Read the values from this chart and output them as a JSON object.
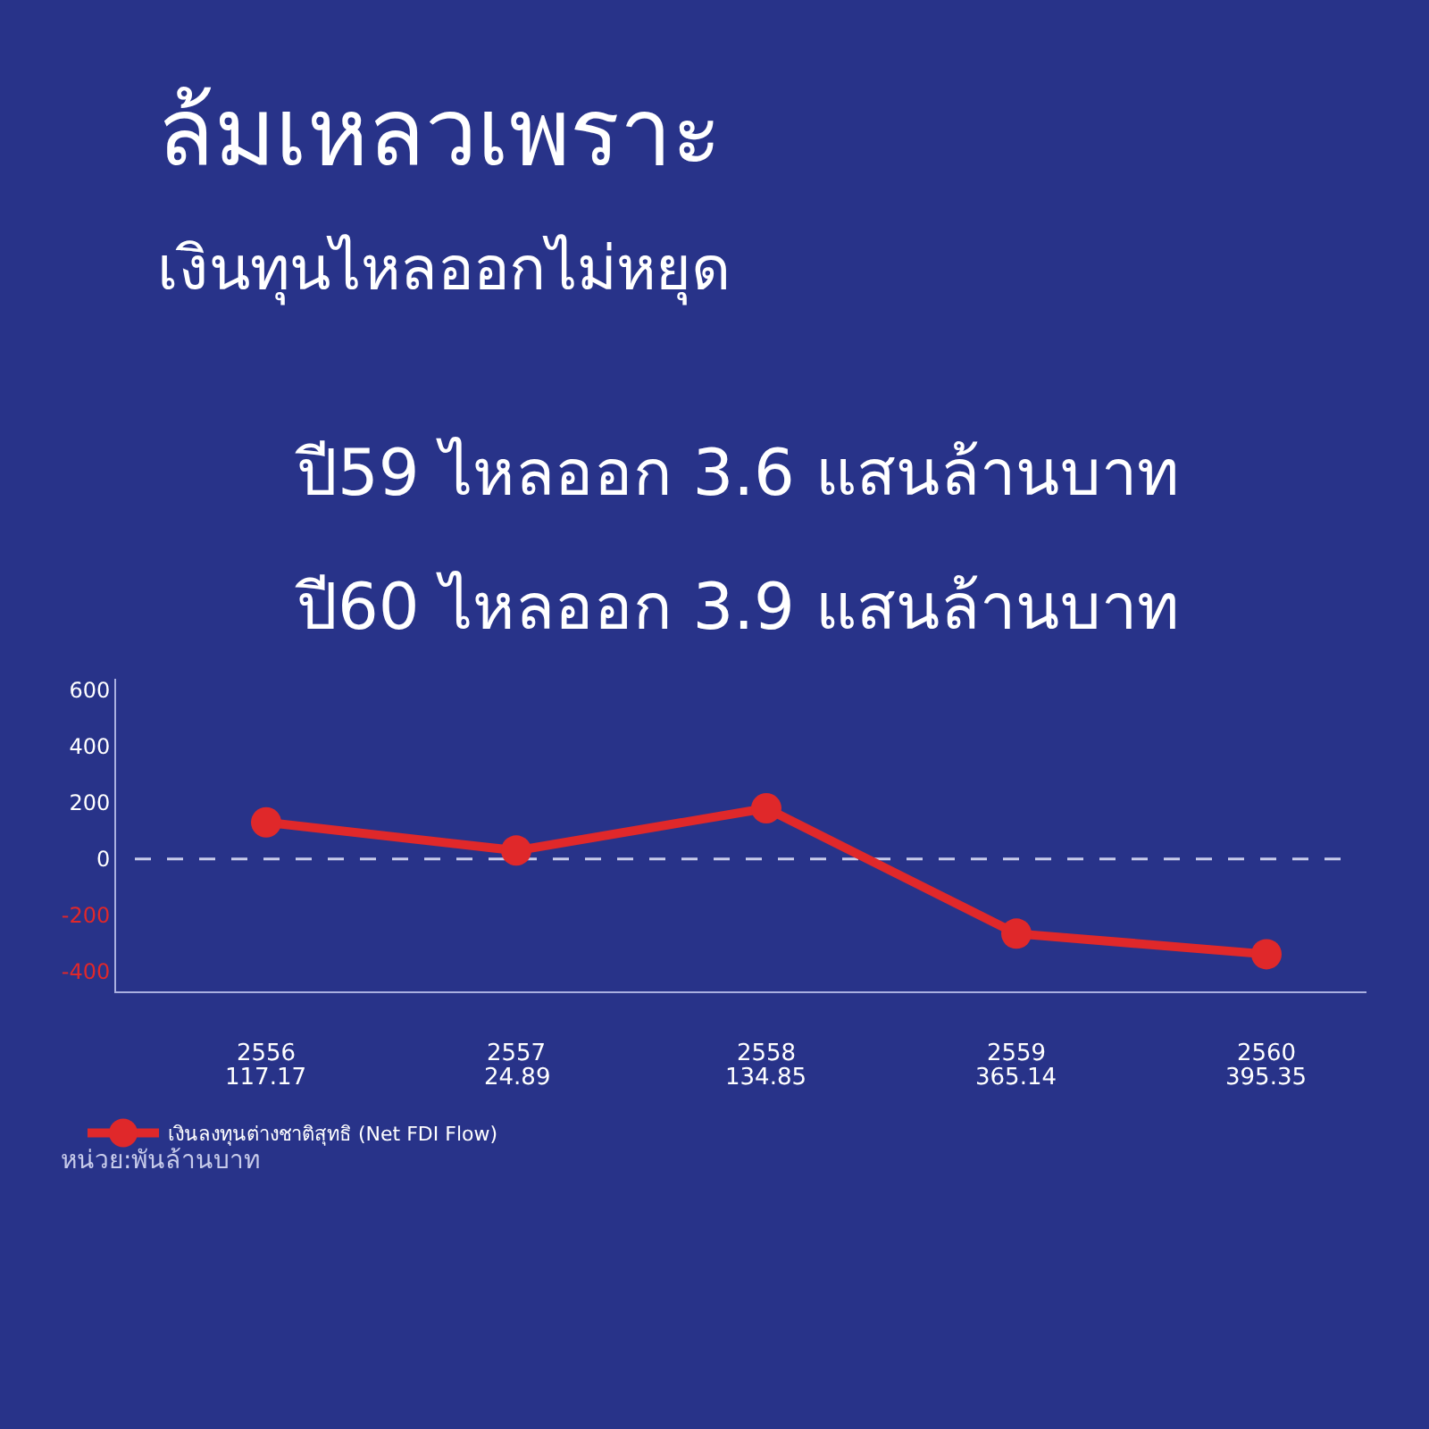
{
  "chart_data": {
    "type": "line",
    "title": "ล้มเหลวเพราะ\nเงินทุนไหลออกไม่หยุด",
    "subtitle": "ปี59 ไหลออก 3.6 แสนล้านบาท\nปี60 ไหลออก 3.9 แสนล้านบาท",
    "categories": [
      "2556",
      "2557",
      "2558",
      "2559",
      "2560"
    ],
    "series": [
      {
        "name": "เงินลงทุนต่างชาติสุทธิ (Net FDI Flow)",
        "color": "#e0282a",
        "values": [
          130,
          30,
          180,
          -265,
          -338
        ]
      }
    ],
    "ylim": [
      -470,
      640
    ],
    "yticks": [
      -400,
      -200,
      0,
      200,
      400,
      600
    ],
    "ref_lines": [
      {
        "axis": "y",
        "value": 0,
        "color": "#c7cbea",
        "line_style": "dashed"
      }
    ],
    "annotations": [
      "117.17",
      "24.89",
      "134.85",
      "365.14",
      "395.35",
      "หน่วย:พันล้านบาท"
    ],
    "marker": "circle",
    "line_style": "solid",
    "grid": false,
    "legend": "bottom left"
  }
}
